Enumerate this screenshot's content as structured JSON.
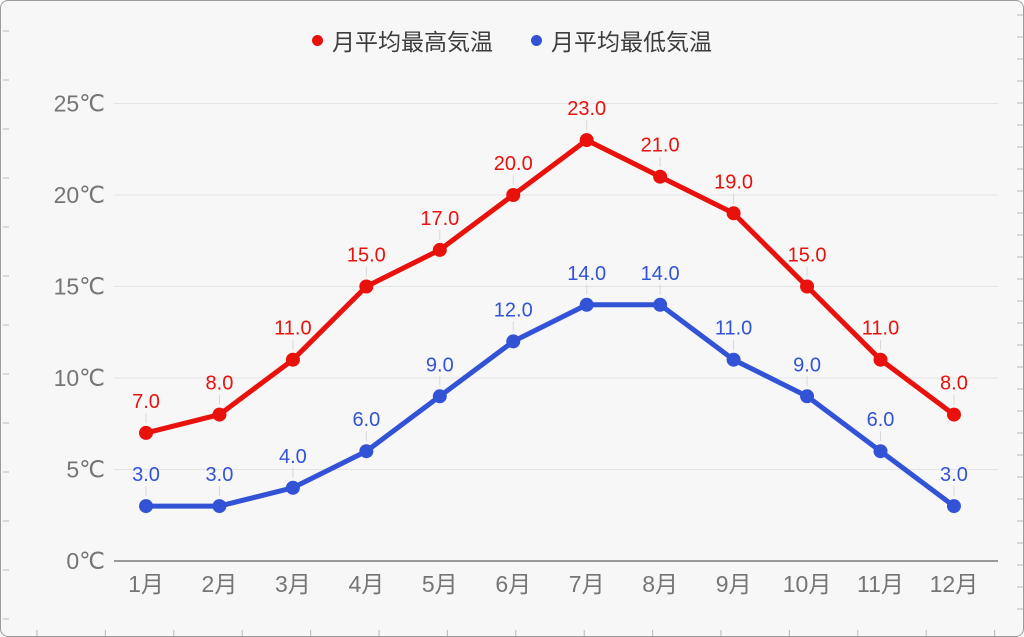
{
  "colors": {
    "background": "#f7f7f7",
    "frame_border": "#9b9b9b",
    "gridline": "#e4e4e4",
    "axis_line": "#9a9a9a",
    "axis_text": "#757575",
    "legend_text": "#3d3d3d",
    "leader": "#d8d8d8",
    "edge_tick": "#b9b9b9",
    "series_max": "#e8110c",
    "series_min": "#3353d6"
  },
  "chart_data": {
    "type": "line",
    "title": "",
    "xlabel": "",
    "ylabel": "",
    "grid": true,
    "legend_position": "top",
    "ylim": [
      0,
      25
    ],
    "categories": [
      "1月",
      "2月",
      "3月",
      "4月",
      "5月",
      "6月",
      "7月",
      "8月",
      "9月",
      "10月",
      "11月",
      "12月"
    ],
    "y_ticks": [
      {
        "label": "0℃",
        "value": 0
      },
      {
        "label": "5℃",
        "value": 5
      },
      {
        "label": "10℃",
        "value": 10
      },
      {
        "label": "15℃",
        "value": 15
      },
      {
        "label": "20℃",
        "value": 20
      },
      {
        "label": "25℃",
        "value": 25
      }
    ],
    "series": [
      {
        "name": "月平均最高気温",
        "color": "#e8110c",
        "values": [
          7,
          8,
          11,
          15,
          17,
          20,
          23,
          21,
          19,
          15,
          11,
          8
        ],
        "point_labels": [
          "7.0",
          "8.0",
          "11.0",
          "15.0",
          "17.0",
          "20.0",
          "23.0",
          "21.0",
          "19.0",
          "15.0",
          "11.0",
          "8.0"
        ]
      },
      {
        "name": "月平均最低気温",
        "color": "#3353d6",
        "values": [
          3,
          3,
          4,
          6,
          9,
          12,
          14,
          14,
          11,
          9,
          6,
          3
        ],
        "point_labels": [
          "3.0",
          "3.0",
          "4.0",
          "6.0",
          "9.0",
          "12.0",
          "14.0",
          "14.0",
          "11.0",
          "9.0",
          "6.0",
          "3.0"
        ]
      }
    ]
  }
}
